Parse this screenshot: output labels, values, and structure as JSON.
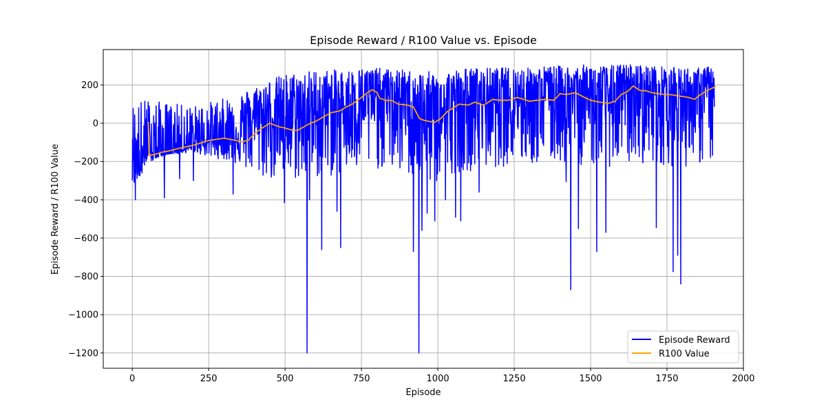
{
  "chart_data": {
    "type": "line",
    "title": "Episode Reward / R100 Value vs. Episode",
    "xlabel": "Episode",
    "ylabel": "Episode Reward / R100 Value",
    "xlim": [
      -95,
      2000
    ],
    "ylim": [
      -1280,
      385
    ],
    "xticks": [
      0,
      250,
      500,
      750,
      1000,
      1250,
      1500,
      1750,
      2000
    ],
    "yticks": [
      -1200,
      -1000,
      -800,
      -600,
      -400,
      -200,
      0,
      200
    ],
    "xtick_labels": [
      "0",
      "250",
      "500",
      "750",
      "1000",
      "1250",
      "1500",
      "1750",
      "2000"
    ],
    "ytick_labels": [
      "−1200",
      "−1000",
      "−800",
      "−600",
      "−400",
      "−200",
      "0",
      "200"
    ],
    "grid": true,
    "legend_position": "lower-right",
    "legend": [
      "Episode Reward",
      "R100 Value"
    ],
    "colors": {
      "episode_reward": "#0000ff",
      "r100": "#ffa500",
      "grid": "#b0b0b0"
    },
    "series": [
      {
        "name": "Episode Reward",
        "x": [
          0,
          50,
          100,
          150,
          200,
          250,
          300,
          350,
          400,
          450,
          500,
          550,
          600,
          650,
          700,
          750,
          800,
          850,
          900,
          950,
          1000,
          1050,
          1100,
          1150,
          1200,
          1250,
          1300,
          1350,
          1400,
          1450,
          1500,
          1550,
          1600,
          1650,
          1700,
          1750,
          1800,
          1850,
          1905
        ],
        "y": [
          -350,
          -210,
          -170,
          -145,
          -120,
          -95,
          -85,
          -60,
          30,
          40,
          0,
          40,
          60,
          80,
          90,
          110,
          150,
          140,
          100,
          40,
          30,
          90,
          110,
          120,
          130,
          140,
          140,
          150,
          170,
          160,
          150,
          140,
          150,
          160,
          170,
          170,
          160,
          170,
          180
        ],
        "spread_low": [
          -80,
          -140,
          -160,
          -160,
          -150,
          -180,
          -190,
          -220,
          -280,
          -300,
          -300,
          -300,
          -290,
          -280,
          -270,
          -260,
          -240,
          -250,
          -280,
          -320,
          -320,
          -260,
          -250,
          -240,
          -230,
          -220,
          -220,
          -220,
          -210,
          -220,
          -220,
          -230,
          -220,
          -210,
          -210,
          -220,
          -230,
          -220,
          -200
        ],
        "spread_high": [
          120,
          130,
          110,
          100,
          90,
          110,
          130,
          160,
          190,
          230,
          260,
          270,
          280,
          280,
          280,
          290,
          290,
          280,
          280,
          270,
          270,
          280,
          290,
          290,
          290,
          295,
          290,
          300,
          300,
          300,
          310,
          300,
          310,
          310,
          300,
          295,
          290,
          290,
          300
        ],
        "spikes": [
          [
            10,
            -400
          ],
          [
            105,
            -390
          ],
          [
            155,
            -290
          ],
          [
            200,
            -300
          ],
          [
            330,
            -370
          ],
          [
            498,
            -415
          ],
          [
            572,
            -1200
          ],
          [
            580,
            -400
          ],
          [
            620,
            -660
          ],
          [
            670,
            -460
          ],
          [
            682,
            -650
          ],
          [
            920,
            -670
          ],
          [
            938,
            -1200
          ],
          [
            948,
            -560
          ],
          [
            965,
            -470
          ],
          [
            990,
            -510
          ],
          [
            1025,
            -400
          ],
          [
            1058,
            -490
          ],
          [
            1075,
            -510
          ],
          [
            1135,
            -360
          ],
          [
            1420,
            -305
          ],
          [
            1435,
            -870
          ],
          [
            1460,
            -550
          ],
          [
            1520,
            -670
          ],
          [
            1550,
            -570
          ],
          [
            1715,
            -545
          ],
          [
            1770,
            -775
          ],
          [
            1785,
            -690
          ],
          [
            1795,
            -840
          ]
        ]
      },
      {
        "name": "R100 Value",
        "x": [
          50,
          52,
          55,
          60,
          80,
          100,
          120,
          150,
          200,
          250,
          300,
          340,
          360,
          380,
          400,
          420,
          450,
          480,
          500,
          520,
          540,
          560,
          580,
          600,
          620,
          650,
          680,
          700,
          720,
          750,
          770,
          785,
          800,
          810,
          830,
          850,
          870,
          900,
          920,
          940,
          955,
          970,
          990,
          1010,
          1030,
          1050,
          1070,
          1100,
          1120,
          1150,
          1180,
          1200,
          1230,
          1260,
          1300,
          1350,
          1380,
          1400,
          1420,
          1450,
          1480,
          1500,
          1530,
          1560,
          1580,
          1600,
          1620,
          1640,
          1660,
          1680,
          1700,
          1720,
          1740,
          1760,
          1780,
          1800,
          1820,
          1840,
          1860,
          1880,
          1900,
          1910
        ],
        "y": [
          0,
          5,
          -170,
          -168,
          -160,
          -150,
          -145,
          -132,
          -115,
          -90,
          -78,
          -90,
          -98,
          -88,
          -55,
          -30,
          0,
          -18,
          -25,
          -35,
          -38,
          -20,
          -2,
          10,
          28,
          55,
          65,
          85,
          100,
          135,
          160,
          175,
          162,
          130,
          120,
          118,
          100,
          95,
          85,
          25,
          15,
          10,
          5,
          25,
          60,
          80,
          100,
          95,
          110,
          95,
          125,
          120,
          120,
          135,
          115,
          125,
          120,
          155,
          150,
          160,
          135,
          120,
          110,
          105,
          115,
          150,
          165,
          195,
          172,
          170,
          160,
          155,
          150,
          150,
          145,
          140,
          135,
          125,
          150,
          170,
          185,
          190
        ]
      }
    ]
  }
}
